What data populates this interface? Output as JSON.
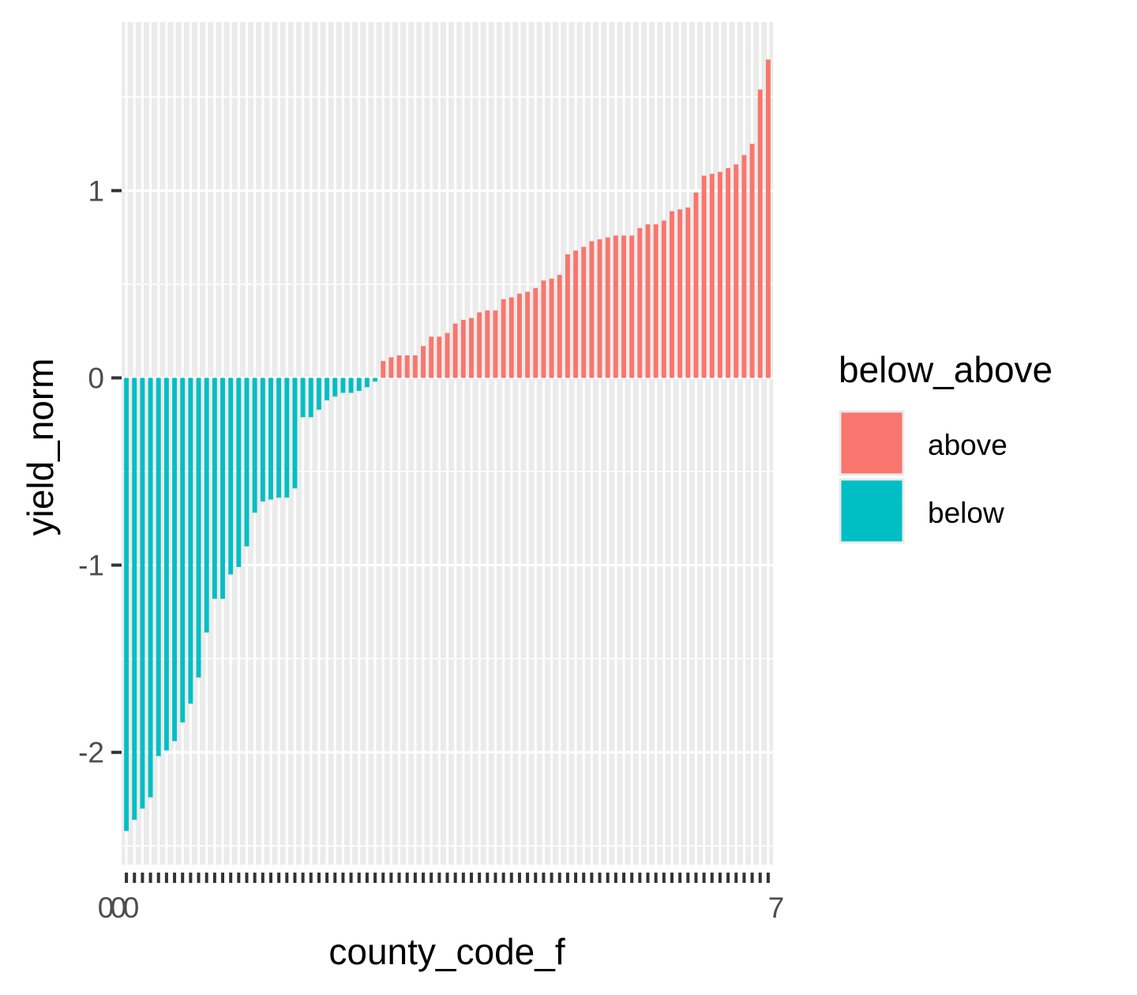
{
  "chart_data": {
    "type": "bar",
    "xlabel": "county_code_f",
    "ylabel": "yield_norm",
    "ylim": [
      -2.6,
      1.9
    ],
    "y_ticks": [
      -2,
      -1,
      0,
      1
    ],
    "grid": true,
    "legend_position": "right",
    "legend": {
      "title": "below_above",
      "entries": [
        {
          "label": "above",
          "color": "#F8766D"
        },
        {
          "label": "below",
          "color": "#00BFC4"
        }
      ]
    },
    "x_tick_labels_visible": [
      "0",
      "0",
      "0",
      "7"
    ],
    "series": [
      {
        "name": "below",
        "color": "#00BFC4",
        "values": [
          -2.42,
          -2.36,
          -2.3,
          -2.24,
          -2.02,
          -1.99,
          -1.94,
          -1.84,
          -1.74,
          -1.6,
          -1.36,
          -1.18,
          -1.18,
          -1.05,
          -1.01,
          -0.9,
          -0.72,
          -0.66,
          -0.65,
          -0.64,
          -0.64,
          -0.59,
          -0.21,
          -0.21,
          -0.17,
          -0.12,
          -0.1,
          -0.08,
          -0.08,
          -0.07,
          -0.05,
          -0.02
        ]
      },
      {
        "name": "above",
        "color": "#F8766D",
        "values": [
          0.09,
          0.11,
          0.12,
          0.12,
          0.12,
          0.17,
          0.22,
          0.22,
          0.24,
          0.29,
          0.31,
          0.32,
          0.35,
          0.36,
          0.36,
          0.42,
          0.43,
          0.45,
          0.46,
          0.48,
          0.52,
          0.53,
          0.55,
          0.66,
          0.68,
          0.7,
          0.73,
          0.74,
          0.75,
          0.76,
          0.76,
          0.76,
          0.8,
          0.82,
          0.82,
          0.84,
          0.89,
          0.9,
          0.91,
          0.99,
          1.08,
          1.09,
          1.1,
          1.12,
          1.14,
          1.19,
          1.25,
          1.54,
          1.7
        ]
      }
    ]
  }
}
